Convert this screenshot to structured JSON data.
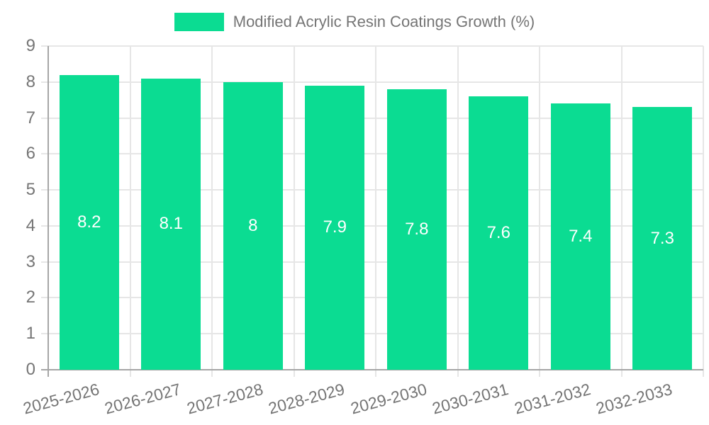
{
  "legend": {
    "label": "Modified Acrylic Resin Coatings Growth (%)",
    "swatch_color": "#0bdc92"
  },
  "chart_data": {
    "type": "bar",
    "title": "Modified Acrylic Resin Coatings Growth (%)",
    "categories": [
      "2025-2026",
      "2026-2027",
      "2027-2028",
      "2028-2029",
      "2029-2030",
      "2030-2031",
      "2031-2032",
      "2032-2033"
    ],
    "values": [
      8.2,
      8.1,
      8,
      7.9,
      7.8,
      7.6,
      7.4,
      7.3
    ],
    "value_labels": [
      "8.2",
      "8.1",
      "8",
      "7.9",
      "7.8",
      "7.6",
      "7.4",
      "7.3"
    ],
    "xlabel": "",
    "ylabel": "",
    "ylim": [
      0,
      9
    ],
    "yticks": [
      "0",
      "1",
      "2",
      "3",
      "4",
      "5",
      "6",
      "7",
      "8",
      "9"
    ],
    "grid": true,
    "legend_position": "top",
    "x_label_rotation_deg": -15,
    "colors": {
      "bar": "#0bdc92",
      "bar_value_text": "#ffffff",
      "axis_text": "#757575",
      "grid_line": "#e6e6e6",
      "axis_line": "#a6a6a6",
      "background": "#ffffff"
    }
  }
}
